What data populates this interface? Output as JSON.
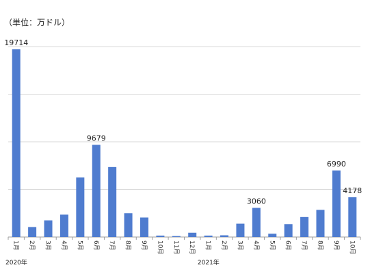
{
  "chart_data": {
    "type": "bar",
    "unit_label": "（単位：万ドル）",
    "categories": [
      "1月",
      "2月",
      "3月",
      "4月",
      "5月",
      "6月",
      "7月",
      "8月",
      "9月",
      "10月",
      "11月",
      "12月",
      "1月",
      "2月",
      "3月",
      "4月",
      "5月",
      "6月",
      "7月",
      "8月",
      "9月",
      "10月"
    ],
    "values": [
      19714,
      1050,
      1750,
      2350,
      6250,
      9679,
      7350,
      2500,
      2050,
      150,
      100,
      450,
      150,
      180,
      1400,
      3060,
      350,
      1350,
      2100,
      2850,
      6990,
      4178
    ],
    "labeled_values": [
      19714,
      null,
      null,
      null,
      null,
      9679,
      null,
      null,
      null,
      null,
      null,
      null,
      null,
      null,
      null,
      3060,
      null,
      null,
      null,
      null,
      6990,
      4178
    ],
    "years": [
      {
        "label": "2020年",
        "start_index": 0
      },
      {
        "label": "2021年",
        "start_index": 12
      }
    ],
    "ylim": [
      0,
      20000
    ],
    "grid": true,
    "legend": "none",
    "colors": {
      "bar": "#4f7ccf",
      "grid": "#d9d9d9",
      "axis": "#9e9e9e"
    }
  }
}
